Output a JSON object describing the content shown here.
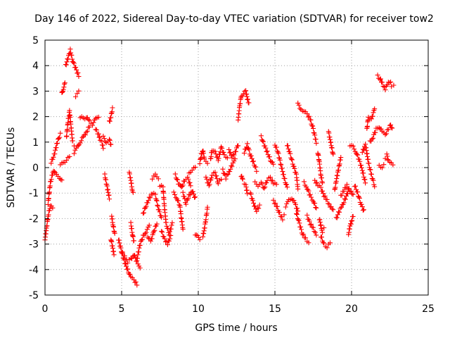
{
  "chart_data": {
    "type": "scatter",
    "title": "Day 146 of 2022, Sidereal Day-to-day VTEC variation (SDTVAR) for receiver tow2",
    "xlabel": "GPS time / hours",
    "ylabel": "SDTVAR / TECUs",
    "xlim": [
      0,
      25
    ],
    "ylim": [
      -5,
      5
    ],
    "xticks": [
      "0",
      "5",
      "10",
      "15",
      "20",
      "25"
    ],
    "yticks": [
      "-5",
      "-4",
      "-3",
      "-2",
      "-1",
      "0",
      "1",
      "2",
      "3",
      "4",
      "5"
    ],
    "grid": true,
    "marker": "+",
    "series_color": "#ff0000",
    "tracks": [
      [
        [
          0.0,
          -2.8
        ],
        [
          0.1,
          -2.4
        ],
        [
          0.2,
          -1.9
        ],
        [
          0.35,
          -1.5
        ],
        [
          0.5,
          -1.6
        ]
      ],
      [
        [
          0.2,
          -1.4
        ],
        [
          0.35,
          -0.6
        ],
        [
          0.55,
          -0.1
        ],
        [
          0.75,
          -0.3
        ],
        [
          0.95,
          -0.4
        ],
        [
          1.1,
          -0.5
        ]
      ],
      [
        [
          0.4,
          0.2
        ],
        [
          0.6,
          0.5
        ],
        [
          0.8,
          1.0
        ],
        [
          1.0,
          1.3
        ]
      ],
      [
        [
          1.0,
          0.1
        ],
        [
          1.2,
          0.2
        ],
        [
          1.4,
          0.3
        ],
        [
          1.6,
          0.4
        ]
      ],
      [
        [
          1.1,
          2.9
        ],
        [
          1.2,
          3.1
        ],
        [
          1.3,
          3.3
        ]
      ],
      [
        [
          1.35,
          4.0
        ],
        [
          1.5,
          4.3
        ],
        [
          1.65,
          4.6
        ],
        [
          1.8,
          4.2
        ],
        [
          2.0,
          3.9
        ],
        [
          2.2,
          3.6
        ]
      ],
      [
        [
          1.4,
          1.2
        ],
        [
          1.5,
          1.8
        ],
        [
          1.6,
          2.2
        ],
        [
          1.7,
          1.6
        ],
        [
          1.8,
          1.0
        ],
        [
          1.9,
          0.9
        ]
      ],
      [
        [
          2.0,
          2.8
        ],
        [
          2.1,
          2.9
        ],
        [
          2.2,
          3.0
        ]
      ],
      [
        [
          1.9,
          0.6
        ],
        [
          2.1,
          0.8
        ],
        [
          2.3,
          1.0
        ],
        [
          2.5,
          1.2
        ],
        [
          2.7,
          1.4
        ],
        [
          2.9,
          1.6
        ]
      ],
      [
        [
          2.3,
          2.0
        ],
        [
          2.5,
          1.9
        ],
        [
          2.7,
          2.0
        ],
        [
          2.9,
          1.8
        ],
        [
          3.1,
          1.7
        ],
        [
          3.3,
          1.9
        ],
        [
          3.5,
          2.0
        ]
      ],
      [
        [
          3.3,
          1.5
        ],
        [
          3.5,
          1.3
        ],
        [
          3.6,
          1.1
        ],
        [
          3.7,
          1.0
        ],
        [
          3.8,
          0.8
        ]
      ],
      [
        [
          3.8,
          1.2
        ],
        [
          4.0,
          1.0
        ],
        [
          4.2,
          1.1
        ],
        [
          4.3,
          0.9
        ]
      ],
      [
        [
          3.9,
          -0.3
        ],
        [
          4.0,
          -0.6
        ],
        [
          4.1,
          -0.9
        ],
        [
          4.2,
          -1.2
        ]
      ],
      [
        [
          4.2,
          1.8
        ],
        [
          4.3,
          2.0
        ],
        [
          4.4,
          2.3
        ]
      ],
      [
        [
          4.35,
          -1.9
        ],
        [
          4.45,
          -2.3
        ],
        [
          4.55,
          -2.6
        ]
      ],
      [
        [
          4.3,
          -2.8
        ],
        [
          4.4,
          -3.1
        ],
        [
          4.5,
          -3.4
        ]
      ],
      [
        [
          4.8,
          -2.8
        ],
        [
          4.95,
          -3.2
        ],
        [
          5.1,
          -3.5
        ],
        [
          5.25,
          -3.8
        ],
        [
          5.45,
          -4.1
        ],
        [
          5.6,
          -4.3
        ],
        [
          5.8,
          -4.4
        ],
        [
          6.0,
          -4.6
        ]
      ],
      [
        [
          5.0,
          -3.3
        ],
        [
          5.2,
          -3.5
        ],
        [
          5.4,
          -3.7
        ],
        [
          5.6,
          -3.6
        ],
        [
          5.8,
          -3.4
        ],
        [
          6.0,
          -3.7
        ],
        [
          6.2,
          -3.9
        ]
      ],
      [
        [
          5.5,
          -0.2
        ],
        [
          5.6,
          -0.5
        ],
        [
          5.7,
          -0.9
        ],
        [
          5.75,
          -1.0
        ]
      ],
      [
        [
          5.6,
          -2.2
        ],
        [
          5.7,
          -2.6
        ],
        [
          5.8,
          -2.9
        ]
      ],
      [
        [
          6.0,
          -3.6
        ],
        [
          6.2,
          -3.0
        ],
        [
          6.4,
          -2.7
        ],
        [
          6.6,
          -2.5
        ],
        [
          6.8,
          -2.3
        ]
      ],
      [
        [
          6.4,
          -1.8
        ],
        [
          6.6,
          -1.5
        ],
        [
          6.8,
          -1.2
        ],
        [
          7.0,
          -1.0
        ],
        [
          7.2,
          -1.1
        ],
        [
          7.4,
          -1.6
        ],
        [
          7.6,
          -2.0
        ]
      ],
      [
        [
          6.7,
          -2.7
        ],
        [
          6.9,
          -2.9
        ],
        [
          7.1,
          -2.5
        ],
        [
          7.3,
          -2.2
        ]
      ],
      [
        [
          7.0,
          -0.4
        ],
        [
          7.2,
          -0.3
        ],
        [
          7.4,
          -0.4
        ]
      ],
      [
        [
          7.5,
          -0.7
        ],
        [
          7.7,
          -0.8
        ],
        [
          7.8,
          -1.6
        ],
        [
          7.9,
          -2.2
        ],
        [
          8.1,
          -2.6
        ],
        [
          8.3,
          -2.2
        ]
      ],
      [
        [
          7.6,
          -2.5
        ],
        [
          7.8,
          -2.8
        ],
        [
          8.0,
          -3.0
        ],
        [
          8.2,
          -2.7
        ]
      ],
      [
        [
          8.4,
          -1.0
        ],
        [
          8.6,
          -1.2
        ],
        [
          8.8,
          -1.5
        ],
        [
          8.9,
          -2.0
        ],
        [
          9.0,
          -2.4
        ]
      ],
      [
        [
          8.5,
          -0.3
        ],
        [
          8.7,
          -0.6
        ],
        [
          8.9,
          -0.8
        ],
        [
          9.1,
          -0.5
        ],
        [
          9.3,
          -0.4
        ],
        [
          9.5,
          -0.7
        ]
      ],
      [
        [
          9.0,
          -1.0
        ],
        [
          9.2,
          -1.4
        ],
        [
          9.4,
          -1.1
        ],
        [
          9.6,
          -0.9
        ],
        [
          9.8,
          -1.2
        ]
      ],
      [
        [
          9.4,
          -0.2
        ],
        [
          9.6,
          -0.1
        ],
        [
          9.8,
          0.0
        ]
      ],
      [
        [
          9.8,
          -2.6
        ],
        [
          9.95,
          -2.7
        ],
        [
          10.1,
          -2.8
        ]
      ],
      [
        [
          10.1,
          0.2
        ],
        [
          10.2,
          0.5
        ],
        [
          10.3,
          0.7
        ],
        [
          10.4,
          0.3
        ],
        [
          10.6,
          0.2
        ]
      ],
      [
        [
          10.3,
          -2.7
        ],
        [
          10.4,
          -2.4
        ],
        [
          10.5,
          -2.0
        ],
        [
          10.6,
          -1.6
        ]
      ],
      [
        [
          10.5,
          -0.4
        ],
        [
          10.7,
          -0.7
        ],
        [
          10.9,
          -0.3
        ],
        [
          11.1,
          -0.2
        ],
        [
          11.3,
          -0.6
        ],
        [
          11.5,
          -0.5
        ]
      ],
      [
        [
          10.8,
          0.3
        ],
        [
          10.9,
          0.7
        ],
        [
          11.1,
          0.6
        ],
        [
          11.3,
          0.3
        ],
        [
          11.5,
          0.8
        ],
        [
          11.7,
          0.5
        ],
        [
          11.9,
          0.4
        ]
      ],
      [
        [
          11.6,
          -0.1
        ],
        [
          11.8,
          -0.4
        ],
        [
          12.0,
          -0.2
        ],
        [
          12.2,
          0.1
        ],
        [
          12.4,
          0.3
        ]
      ],
      [
        [
          12.0,
          0.7
        ],
        [
          12.2,
          0.4
        ],
        [
          12.4,
          0.6
        ],
        [
          12.6,
          0.9
        ]
      ],
      [
        [
          12.6,
          1.9
        ],
        [
          12.7,
          2.4
        ],
        [
          12.8,
          2.8
        ],
        [
          12.95,
          2.9
        ],
        [
          13.1,
          3.0
        ],
        [
          13.2,
          2.7
        ],
        [
          13.3,
          2.5
        ]
      ],
      [
        [
          12.8,
          -0.3
        ],
        [
          12.9,
          -0.5
        ],
        [
          13.0,
          -0.6
        ],
        [
          13.1,
          -0.7
        ],
        [
          13.2,
          -1.0
        ]
      ],
      [
        [
          13.0,
          0.6
        ],
        [
          13.2,
          0.9
        ],
        [
          13.4,
          0.5
        ],
        [
          13.6,
          0.2
        ],
        [
          13.8,
          -0.1
        ]
      ],
      [
        [
          13.4,
          -1.0
        ],
        [
          13.6,
          -1.4
        ],
        [
          13.8,
          -1.7
        ],
        [
          14.0,
          -1.5
        ]
      ],
      [
        [
          13.7,
          -0.6
        ],
        [
          13.9,
          -0.7
        ],
        [
          14.1,
          -0.6
        ],
        [
          14.3,
          -0.8
        ],
        [
          14.5,
          -0.5
        ],
        [
          14.7,
          -0.4
        ],
        [
          14.9,
          -0.6
        ],
        [
          15.1,
          -0.7
        ]
      ],
      [
        [
          14.1,
          1.2
        ],
        [
          14.3,
          0.9
        ],
        [
          14.5,
          0.6
        ],
        [
          14.7,
          0.3
        ],
        [
          14.9,
          0.1
        ]
      ],
      [
        [
          14.9,
          -1.3
        ],
        [
          15.1,
          -1.5
        ],
        [
          15.3,
          -1.8
        ],
        [
          15.5,
          -2.0
        ],
        [
          15.6,
          -1.9
        ]
      ],
      [
        [
          15.0,
          0.9
        ],
        [
          15.2,
          0.6
        ],
        [
          15.4,
          0.1
        ],
        [
          15.6,
          -0.4
        ],
        [
          15.8,
          -0.8
        ]
      ],
      [
        [
          15.7,
          -1.5
        ],
        [
          15.9,
          -1.3
        ],
        [
          16.1,
          -1.2
        ],
        [
          16.3,
          -1.4
        ],
        [
          16.5,
          -1.7
        ]
      ],
      [
        [
          15.8,
          0.9
        ],
        [
          16.0,
          0.5
        ],
        [
          16.2,
          0.1
        ],
        [
          16.4,
          -0.3
        ],
        [
          16.5,
          -0.8
        ]
      ],
      [
        [
          16.4,
          -1.8
        ],
        [
          16.6,
          -2.2
        ],
        [
          16.8,
          -2.6
        ],
        [
          17.0,
          -2.8
        ],
        [
          17.2,
          -2.9
        ]
      ],
      [
        [
          16.5,
          2.5
        ],
        [
          16.7,
          2.3
        ],
        [
          16.9,
          2.2
        ],
        [
          17.1,
          2.1
        ],
        [
          17.3,
          1.9
        ],
        [
          17.5,
          1.5
        ],
        [
          17.7,
          1.0
        ]
      ],
      [
        [
          16.9,
          -0.6
        ],
        [
          17.1,
          -0.8
        ],
        [
          17.3,
          -1.1
        ],
        [
          17.5,
          -1.3
        ],
        [
          17.7,
          -1.6
        ]
      ],
      [
        [
          17.1,
          -1.9
        ],
        [
          17.3,
          -2.2
        ],
        [
          17.5,
          -2.4
        ],
        [
          17.7,
          -2.6
        ]
      ],
      [
        [
          17.6,
          -0.5
        ],
        [
          17.8,
          -0.7
        ],
        [
          18.0,
          -0.8
        ],
        [
          18.2,
          -1.1
        ],
        [
          18.4,
          -1.3
        ],
        [
          18.6,
          -1.5
        ],
        [
          18.8,
          -1.7
        ]
      ],
      [
        [
          17.8,
          0.6
        ],
        [
          17.9,
          0.2
        ],
        [
          18.0,
          -0.3
        ],
        [
          18.1,
          -0.6
        ]
      ],
      [
        [
          17.9,
          -2.0
        ],
        [
          18.0,
          -2.3
        ],
        [
          18.1,
          -2.5
        ],
        [
          18.2,
          -2.4
        ]
      ],
      [
        [
          18.0,
          -2.7
        ],
        [
          18.2,
          -3.0
        ],
        [
          18.4,
          -3.1
        ],
        [
          18.6,
          -3.0
        ]
      ],
      [
        [
          18.5,
          1.4
        ],
        [
          18.6,
          1.1
        ],
        [
          18.7,
          0.8
        ],
        [
          18.8,
          0.5
        ]
      ],
      [
        [
          18.9,
          -0.9
        ],
        [
          19.0,
          -0.5
        ],
        [
          19.1,
          -0.2
        ],
        [
          19.2,
          0.1
        ],
        [
          19.3,
          0.4
        ]
      ],
      [
        [
          19.0,
          -2.0
        ],
        [
          19.2,
          -1.7
        ],
        [
          19.4,
          -1.5
        ],
        [
          19.6,
          -1.2
        ],
        [
          19.8,
          -0.9
        ]
      ],
      [
        [
          19.3,
          -1.1
        ],
        [
          19.5,
          -0.9
        ],
        [
          19.7,
          -0.7
        ],
        [
          19.9,
          -0.9
        ],
        [
          20.1,
          -1.1
        ]
      ],
      [
        [
          19.8,
          -2.6
        ],
        [
          19.9,
          -2.3
        ],
        [
          20.0,
          -2.1
        ],
        [
          20.1,
          -1.9
        ]
      ],
      [
        [
          19.9,
          0.9
        ],
        [
          20.1,
          0.8
        ],
        [
          20.3,
          0.6
        ],
        [
          20.5,
          0.3
        ],
        [
          20.7,
          -0.1
        ],
        [
          20.9,
          -0.6
        ]
      ],
      [
        [
          20.2,
          -0.7
        ],
        [
          20.4,
          -1.0
        ],
        [
          20.6,
          -1.4
        ],
        [
          20.8,
          -1.7
        ]
      ],
      [
        [
          20.7,
          0.6
        ],
        [
          20.9,
          0.9
        ],
        [
          21.1,
          0.2
        ],
        [
          21.3,
          -0.3
        ],
        [
          21.5,
          -0.7
        ]
      ],
      [
        [
          21.0,
          1.5
        ],
        [
          21.1,
          2.0
        ],
        [
          21.3,
          1.9
        ],
        [
          21.5,
          2.3
        ]
      ],
      [
        [
          21.2,
          1.0
        ],
        [
          21.4,
          1.2
        ],
        [
          21.6,
          1.5
        ],
        [
          21.8,
          1.6
        ],
        [
          22.0,
          1.4
        ],
        [
          22.2,
          1.3
        ],
        [
          22.4,
          1.5
        ]
      ],
      [
        [
          21.7,
          3.6
        ],
        [
          21.85,
          3.5
        ],
        [
          22.0,
          3.3
        ],
        [
          22.2,
          3.1
        ],
        [
          22.4,
          3.3
        ],
        [
          22.55,
          3.4
        ]
      ],
      [
        [
          21.8,
          0.1
        ],
        [
          22.0,
          0.0
        ],
        [
          22.1,
          0.1
        ]
      ],
      [
        [
          22.2,
          0.4
        ],
        [
          22.3,
          0.5
        ],
        [
          22.4,
          0.3
        ],
        [
          22.5,
          0.2
        ],
        [
          22.7,
          0.1
        ]
      ],
      [
        [
          22.5,
          1.7
        ],
        [
          22.65,
          1.5
        ]
      ],
      [
        [
          22.6,
          3.2
        ],
        [
          22.75,
          3.2
        ]
      ]
    ]
  }
}
